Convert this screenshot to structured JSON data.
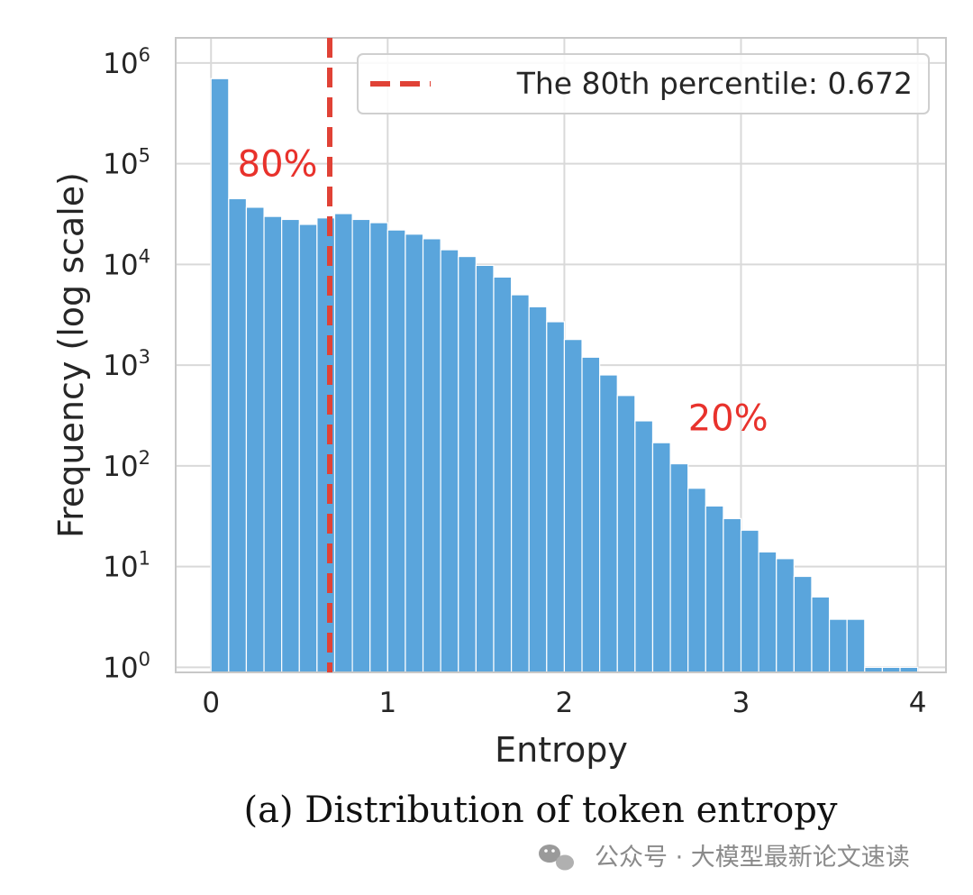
{
  "chart_data": {
    "type": "bar",
    "title": "",
    "xlabel": "Entropy",
    "ylabel": "Frequency (log scale)",
    "yscale": "log",
    "xlim": [
      -0.2,
      4.16
    ],
    "ylim_log10": [
      -0.05,
      6.25
    ],
    "xticks": [
      0,
      1,
      2,
      3,
      4
    ],
    "xtick_labels": [
      "0",
      "1",
      "2",
      "3",
      "4"
    ],
    "yticks_exp": [
      0,
      1,
      2,
      3,
      4,
      5,
      6
    ],
    "ytick_base": "10",
    "bin_width": 0.1,
    "bin_starts": [
      0.0,
      0.1,
      0.2,
      0.3,
      0.4,
      0.5,
      0.6,
      0.7,
      0.8,
      0.9,
      1.0,
      1.1,
      1.2,
      1.3,
      1.4,
      1.5,
      1.6,
      1.7,
      1.8,
      1.9,
      2.0,
      2.1,
      2.2,
      2.3,
      2.4,
      2.5,
      2.6,
      2.7,
      2.8,
      2.9,
      3.0,
      3.1,
      3.2,
      3.3,
      3.4,
      3.5,
      3.6,
      3.7,
      3.8,
      3.9
    ],
    "values": [
      700000,
      45000,
      37000,
      30000,
      28000,
      25000,
      29000,
      32000,
      28000,
      26000,
      22000,
      20000,
      18000,
      14000,
      12000,
      9800,
      7500,
      5000,
      3800,
      2700,
      1800,
      1200,
      800,
      500,
      280,
      170,
      105,
      60,
      40,
      30,
      23,
      14,
      12,
      8,
      5,
      3,
      3,
      1,
      1,
      1
    ],
    "hist_color": "#5aa5dc",
    "percentile_line": {
      "x": 0.672,
      "label": "The 80th percentile: 0.672",
      "color": "#e04236"
    },
    "legend_location": "upper right",
    "annotations": [
      {
        "text": "80%",
        "x": 0.15,
        "y": 100000,
        "color": "#e8322c"
      },
      {
        "text": "20%",
        "x": 2.7,
        "y": 300,
        "color": "#e8322c"
      }
    ],
    "grid": true
  },
  "caption": "(a) Distribution of token entropy",
  "watermark": "公众号 · 大模型最新论文速读"
}
